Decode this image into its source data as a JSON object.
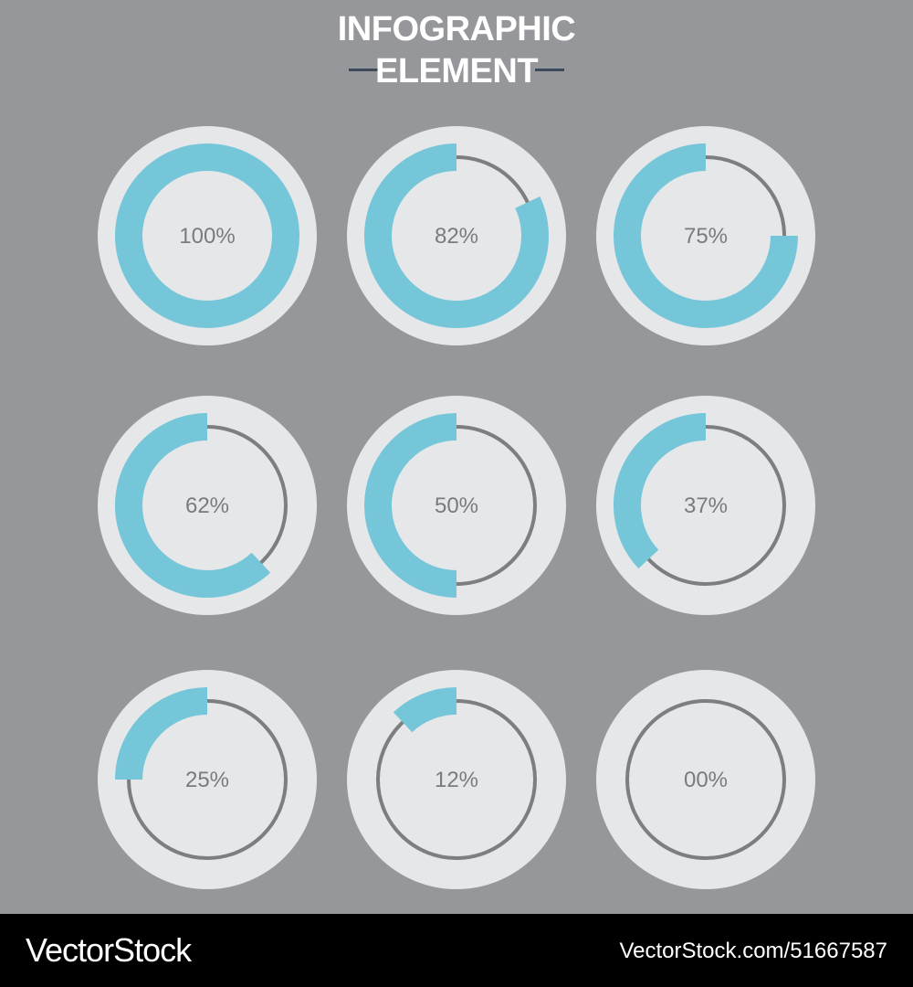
{
  "header": {
    "title_line1": "INFOGRAPHIC",
    "title_line2": "ELEMENT"
  },
  "colors": {
    "background": "#96979b",
    "disc": "#e6e7e9",
    "progress": "#76c6da",
    "track": "#7d7e81",
    "label": "#7a7b7f"
  },
  "chart_data": {
    "type": "donut-gauge-grid",
    "title": "INFOGRAPHIC ELEMENT",
    "unit": "%",
    "gauges": [
      {
        "label": "100%",
        "value": 100
      },
      {
        "label": "82%",
        "value": 82
      },
      {
        "label": "75%",
        "value": 75
      },
      {
        "label": "62%",
        "value": 62
      },
      {
        "label": "50%",
        "value": 50
      },
      {
        "label": "37%",
        "value": 37
      },
      {
        "label": "25%",
        "value": 25
      },
      {
        "label": "12%",
        "value": 12
      },
      {
        "label": "00%",
        "value": 0
      }
    ]
  },
  "footer": {
    "brand": "VectorStock",
    "image_id": "VectorStock.com/51667587"
  }
}
